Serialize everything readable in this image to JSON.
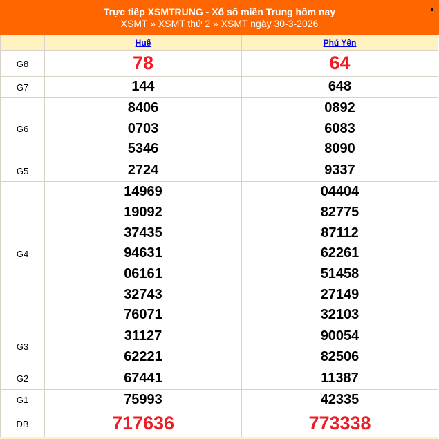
{
  "header": {
    "title": "Trực tiếp XSMTRUNG - Xổ số miền Trung hôm nay",
    "breadcrumb": [
      "XSMT",
      "XSMT thứ 2",
      "XSMT ngày 30-3-2026"
    ],
    "separator": "»"
  },
  "columns": [
    "Huế",
    "Phú Yên"
  ],
  "colors": {
    "header_bg": "#ff6600",
    "highlight": "#ee1c25",
    "column_header_bg": "#fff2c0"
  },
  "prizes": [
    {
      "label": "G8",
      "values": [
        [
          "78"
        ],
        [
          "64"
        ]
      ],
      "highlight": true
    },
    {
      "label": "G7",
      "values": [
        [
          "144"
        ],
        [
          "648"
        ]
      ]
    },
    {
      "label": "G6",
      "values": [
        [
          "8406",
          "0703",
          "5346"
        ],
        [
          "0892",
          "6083",
          "8090"
        ]
      ]
    },
    {
      "label": "G5",
      "values": [
        [
          "2724"
        ],
        [
          "9337"
        ]
      ]
    },
    {
      "label": "G4",
      "values": [
        [
          "14969",
          "19092",
          "37435",
          "94631",
          "06161",
          "32743",
          "76071"
        ],
        [
          "04404",
          "82775",
          "87112",
          "62261",
          "51458",
          "27149",
          "32103"
        ]
      ]
    },
    {
      "label": "G3",
      "values": [
        [
          "31127",
          "62221"
        ],
        [
          "90054",
          "82506"
        ]
      ]
    },
    {
      "label": "G2",
      "values": [
        [
          "67441"
        ],
        [
          "11387"
        ]
      ]
    },
    {
      "label": "G1",
      "values": [
        [
          "75993"
        ],
        [
          "42335"
        ]
      ]
    },
    {
      "label": "ĐB",
      "values": [
        [
          "717636"
        ],
        [
          "773338"
        ]
      ],
      "highlight": true
    }
  ]
}
